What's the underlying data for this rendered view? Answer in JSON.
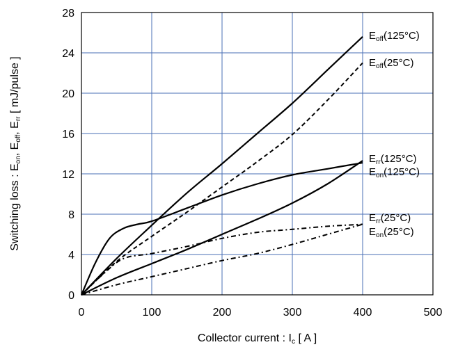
{
  "chart_data": {
    "type": "line",
    "xlabel": {
      "main": "Collector current : I",
      "sub": "c",
      "tail": " [ A ]"
    },
    "ylabel": {
      "parts": [
        {
          "t": "Switching loss : E",
          "sub": false
        },
        {
          "t": "on",
          "sub": true
        },
        {
          "t": ", E",
          "sub": false
        },
        {
          "t": "off",
          "sub": true
        },
        {
          "t": ", E",
          "sub": false
        },
        {
          "t": "rr",
          "sub": true
        },
        {
          "t": " [ mJ/pulse ]",
          "sub": false
        }
      ]
    },
    "xlim": [
      0,
      500
    ],
    "ylim": [
      0,
      28
    ],
    "xticks": [
      0,
      100,
      200,
      300,
      400,
      500
    ],
    "yticks": [
      0,
      4,
      8,
      12,
      16,
      20,
      24,
      28
    ],
    "grid": true,
    "grid_color": "#4a6fb5",
    "series": [
      {
        "name": "Eoff(125°C)",
        "base": "E",
        "sub": "off",
        "cond": "(125°C)",
        "style": "solid",
        "x": [
          0,
          50,
          100,
          150,
          200,
          250,
          300,
          350,
          400
        ],
        "y": [
          0,
          3.6,
          6.9,
          10.1,
          13.0,
          16.0,
          19.0,
          22.3,
          25.6
        ]
      },
      {
        "name": "Eoff(25°C)",
        "base": "E",
        "sub": "off",
        "cond": "(25°C)",
        "style": "dash",
        "x": [
          0,
          50,
          100,
          150,
          200,
          250,
          300,
          350,
          400
        ],
        "y": [
          0,
          3.3,
          5.8,
          8.2,
          10.7,
          13.2,
          15.9,
          19.3,
          23.0
        ]
      },
      {
        "name": "Err(125°C)",
        "base": "E",
        "sub": "rr",
        "cond": "(125°C)",
        "style": "solid",
        "x": [
          0,
          20,
          40,
          60,
          80,
          100,
          150,
          200,
          250,
          300,
          350,
          400
        ],
        "y": [
          0,
          3.2,
          5.6,
          6.6,
          7.0,
          7.3,
          8.6,
          9.9,
          11.0,
          11.9,
          12.5,
          13.1
        ]
      },
      {
        "name": "Eon(125°C)",
        "base": "E",
        "sub": "on",
        "cond": "(125°C)",
        "style": "solid",
        "x": [
          0,
          50,
          100,
          150,
          200,
          250,
          300,
          350,
          400
        ],
        "y": [
          0,
          1.7,
          3.1,
          4.5,
          6.0,
          7.5,
          9.1,
          11.0,
          13.3
        ]
      },
      {
        "name": "Err(25°C)",
        "base": "E",
        "sub": "rr",
        "cond": "(25°C)",
        "style": "dashdot",
        "x": [
          0,
          30,
          60,
          100,
          150,
          200,
          250,
          300,
          350,
          400
        ],
        "y": [
          0,
          2.0,
          3.6,
          4.1,
          4.8,
          5.6,
          6.2,
          6.5,
          6.8,
          7.0
        ]
      },
      {
        "name": "Eon(25°C)",
        "base": "E",
        "sub": "on",
        "cond": "(25°C)",
        "style": "dashdot",
        "x": [
          0,
          50,
          100,
          150,
          200,
          250,
          300,
          350,
          400
        ],
        "y": [
          0,
          1.0,
          1.8,
          2.6,
          3.4,
          4.1,
          5.0,
          6.0,
          7.0
        ]
      }
    ]
  }
}
